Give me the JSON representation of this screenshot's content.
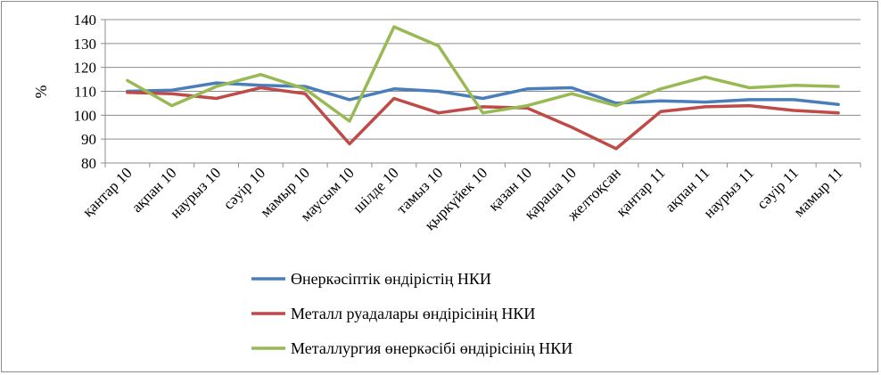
{
  "chart_data": {
    "type": "line",
    "ylabel": "%",
    "ylim": [
      80,
      140
    ],
    "yticks": [
      80,
      90,
      100,
      110,
      120,
      130,
      140
    ],
    "grid": true,
    "legend_position": "bottom",
    "categories": [
      "қантар 10",
      "ақпан 10",
      "наурыз 10",
      "сәуір 10",
      "мамыр 10",
      "маусым 10",
      "шілде 10",
      "тамыз 10",
      "қыркүйек 10",
      "қазан 10",
      "қараша 10",
      "желтоқсан",
      "қантар 11",
      "ақпан 11",
      "наурыз 11",
      "сәуір 11",
      "мамыр 11"
    ],
    "series": [
      {
        "name": "Өнеркәсіптік өндірістің НКИ",
        "color": "#4a7ebb",
        "values": [
          110,
          110.5,
          113.5,
          112.5,
          112,
          106.5,
          111,
          110,
          107,
          111,
          111.5,
          105,
          106,
          105.5,
          106.5,
          106.5,
          104.5
        ]
      },
      {
        "name": "Металл руадалары өндірісінің НКИ",
        "color": "#be4b48",
        "values": [
          109.5,
          109,
          107,
          111.5,
          109,
          88,
          107,
          101,
          103.5,
          103,
          95,
          86,
          101.5,
          103.5,
          104,
          102,
          101
        ]
      },
      {
        "name": "Металлургия өнеркәсібі өндірісінің НКИ",
        "color": "#98b954",
        "values": [
          114.5,
          104,
          112,
          117,
          111,
          97.5,
          137,
          129,
          101,
          104,
          109,
          104,
          111,
          116,
          111.5,
          112.5,
          112
        ]
      }
    ]
  }
}
